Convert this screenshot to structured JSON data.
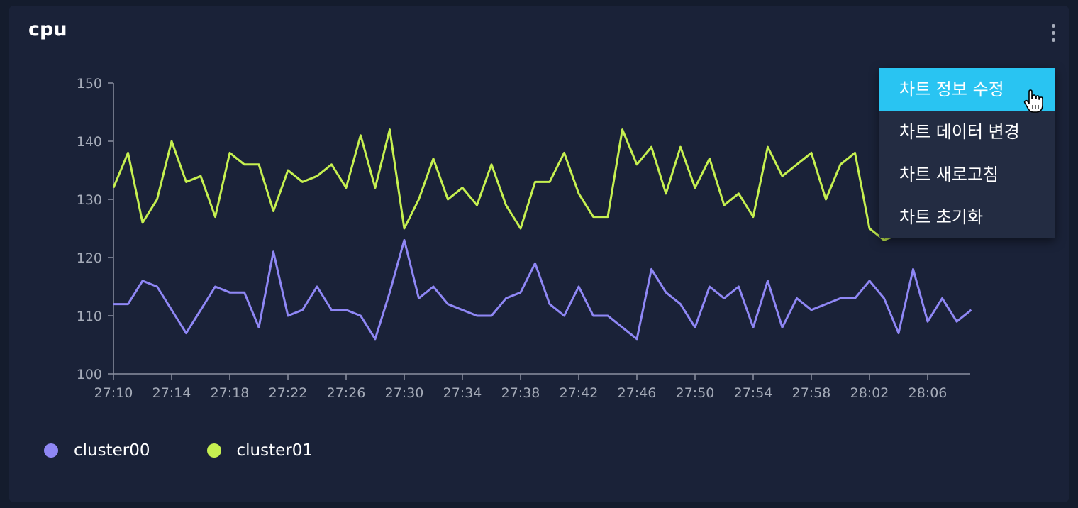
{
  "panel": {
    "title": "cpu"
  },
  "menu": {
    "items": [
      {
        "label": "차트 정보 수정",
        "active": true
      },
      {
        "label": "차트 데이터 변경",
        "active": false
      },
      {
        "label": "차트 새로고침",
        "active": false
      },
      {
        "label": "차트 초기화",
        "active": false
      }
    ]
  },
  "colors": {
    "panel_bg": "#1a2238",
    "menu_highlight": "#29c4f2",
    "cluster00": "#8f87f5",
    "cluster01": "#c6f050",
    "axis": "#8a90a0"
  },
  "chart_data": {
    "type": "line",
    "title": "cpu",
    "xlabel": "",
    "ylabel": "",
    "ylim": [
      100,
      150
    ],
    "y_ticks": [
      100,
      110,
      120,
      130,
      140,
      150
    ],
    "x_tick_labels": [
      "27:10",
      "27:14",
      "27:18",
      "27:22",
      "27:26",
      "27:30",
      "27:34",
      "27:38",
      "27:42",
      "27:46",
      "27:50",
      "27:54",
      "27:58",
      "28:02",
      "28:06"
    ],
    "x": [
      "27:10",
      "27:11",
      "27:12",
      "27:13",
      "27:14",
      "27:15",
      "27:16",
      "27:17",
      "27:18",
      "27:19",
      "27:20",
      "27:21",
      "27:22",
      "27:23",
      "27:24",
      "27:25",
      "27:26",
      "27:27",
      "27:28",
      "27:29",
      "27:30",
      "27:31",
      "27:32",
      "27:33",
      "27:34",
      "27:35",
      "27:36",
      "27:37",
      "27:38",
      "27:39",
      "27:40",
      "27:41",
      "27:42",
      "27:43",
      "27:44",
      "27:45",
      "27:46",
      "27:47",
      "27:48",
      "27:49",
      "27:50",
      "27:51",
      "27:52",
      "27:53",
      "27:54",
      "27:55",
      "27:56",
      "27:57",
      "27:58",
      "27:59",
      "28:00",
      "28:01",
      "28:02",
      "28:03",
      "28:04",
      "28:05",
      "28:06",
      "28:07",
      "28:08",
      "28:09"
    ],
    "grid": false,
    "legend_position": "bottom-left",
    "series": [
      {
        "name": "cluster00",
        "color": "#8f87f5",
        "values": [
          112,
          112,
          116,
          115,
          111,
          107,
          111,
          115,
          114,
          114,
          108,
          121,
          110,
          111,
          115,
          111,
          111,
          110,
          106,
          114,
          123,
          113,
          115,
          112,
          111,
          110,
          110,
          113,
          114,
          119,
          112,
          110,
          115,
          110,
          110,
          108,
          106,
          118,
          114,
          112,
          108,
          115,
          113,
          115,
          108,
          116,
          108,
          113,
          111,
          112,
          113,
          113,
          116,
          113,
          107,
          118,
          109,
          113,
          109,
          111
        ]
      },
      {
        "name": "cluster01",
        "color": "#c6f050",
        "values": [
          132,
          138,
          126,
          130,
          140,
          133,
          134,
          127,
          138,
          136,
          136,
          128,
          135,
          133,
          134,
          136,
          132,
          141,
          132,
          142,
          125,
          130,
          137,
          130,
          132,
          129,
          136,
          129,
          125,
          133,
          133,
          138,
          131,
          127,
          127,
          142,
          136,
          139,
          131,
          139,
          132,
          137,
          129,
          131,
          127,
          139,
          134,
          136,
          138,
          130,
          136,
          138,
          125,
          123,
          124,
          126,
          125,
          124,
          126,
          125
        ]
      }
    ]
  }
}
